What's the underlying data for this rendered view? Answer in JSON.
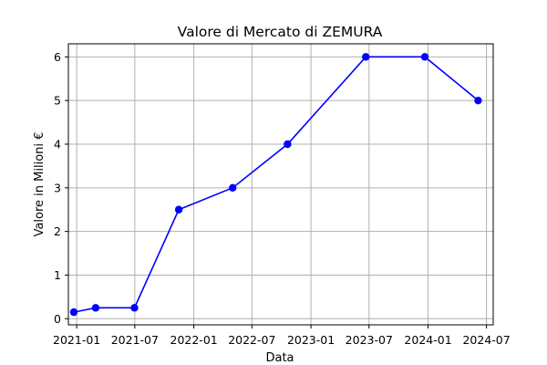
{
  "chart_data": {
    "type": "line",
    "title": "Valore di Mercato di ZEMURA",
    "xlabel": "Data",
    "ylabel": "Valore in Milioni €",
    "x_axis_type": "date",
    "x_ticks": [
      "2021-01",
      "2021-07",
      "2022-01",
      "2022-07",
      "2023-01",
      "2023-07",
      "2024-01",
      "2024-07"
    ],
    "y_ticks": [
      0,
      1,
      2,
      3,
      4,
      5,
      6
    ],
    "xlim": [
      "2020-12-06",
      "2024-07-22"
    ],
    "ylim": [
      -0.14,
      6.3
    ],
    "grid": true,
    "series": [
      {
        "color": "#0000ff",
        "marker": "circle",
        "points": [
          {
            "x": "2020-12-23",
            "y": 0.15
          },
          {
            "x": "2021-03-01",
            "y": 0.25
          },
          {
            "x": "2021-06-30",
            "y": 0.25
          },
          {
            "x": "2021-11-15",
            "y": 2.5
          },
          {
            "x": "2022-05-02",
            "y": 3.0
          },
          {
            "x": "2022-10-20",
            "y": 4.0
          },
          {
            "x": "2023-06-21",
            "y": 6.0
          },
          {
            "x": "2023-12-22",
            "y": 6.0
          },
          {
            "x": "2024-06-05",
            "y": 5.0
          }
        ]
      }
    ]
  }
}
